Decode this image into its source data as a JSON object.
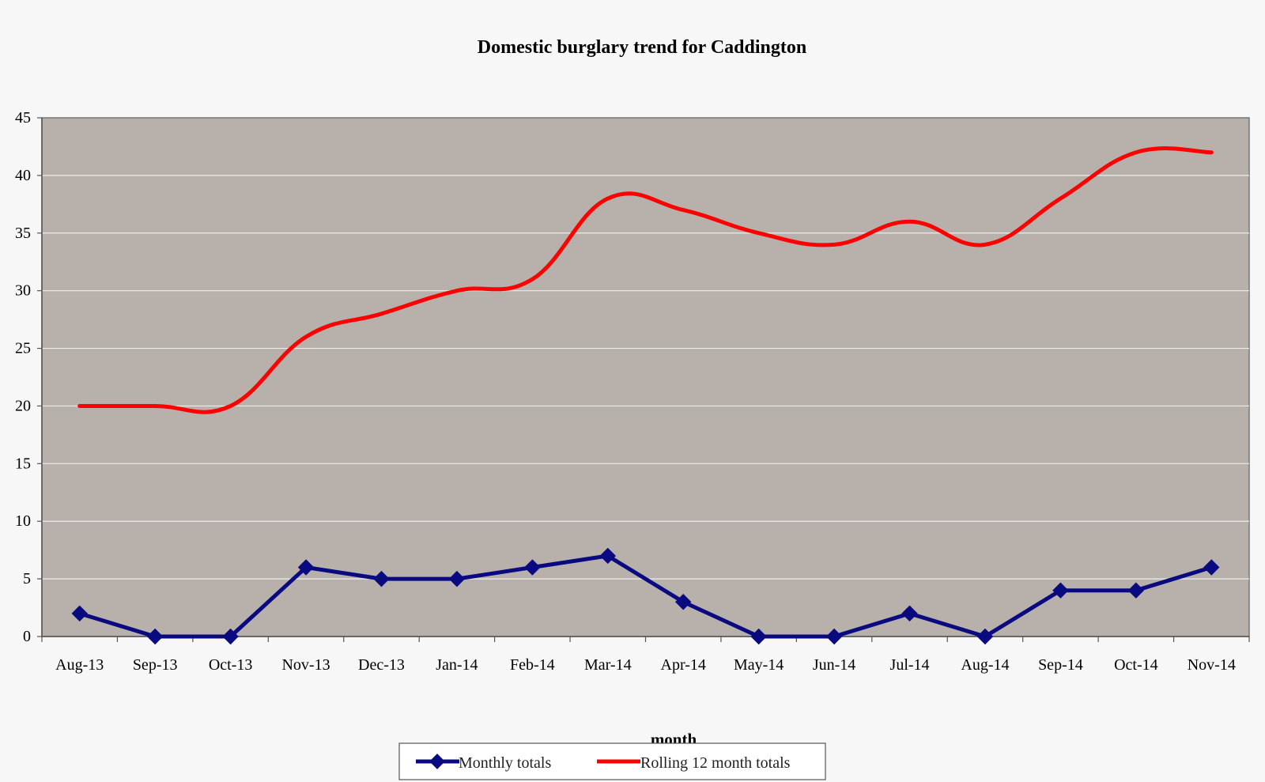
{
  "chart_data": {
    "type": "line",
    "title": "Domestic burglary trend for Caddington",
    "xlabel": "month",
    "ylabel": "",
    "ylim": [
      0,
      45
    ],
    "yticks": [
      0,
      5,
      10,
      15,
      20,
      25,
      30,
      35,
      40,
      45
    ],
    "grid": true,
    "legend_position": "bottom",
    "plot_background": "#b8b0ab",
    "categories": [
      "Aug-13",
      "Sep-13",
      "Oct-13",
      "Nov-13",
      "Dec-13",
      "Jan-14",
      "Feb-14",
      "Mar-14",
      "Apr-14",
      "May-14",
      "Jun-14",
      "Jul-14",
      "Aug-14",
      "Sep-14",
      "Oct-14",
      "Nov-14"
    ],
    "series": [
      {
        "name": "Monthly totals",
        "color": "#0a0a80",
        "marker": "diamond",
        "smooth": false,
        "values": [
          2,
          0,
          0,
          6,
          5,
          5,
          6,
          7,
          3,
          0,
          0,
          2,
          0,
          4,
          4,
          6
        ]
      },
      {
        "name": "Rolling 12 month totals",
        "color": "#ff0000",
        "marker": "none",
        "smooth": true,
        "values": [
          20,
          20,
          20,
          26,
          28,
          30,
          31,
          38,
          37,
          35,
          34,
          36,
          34,
          38,
          42,
          42
        ]
      }
    ]
  }
}
